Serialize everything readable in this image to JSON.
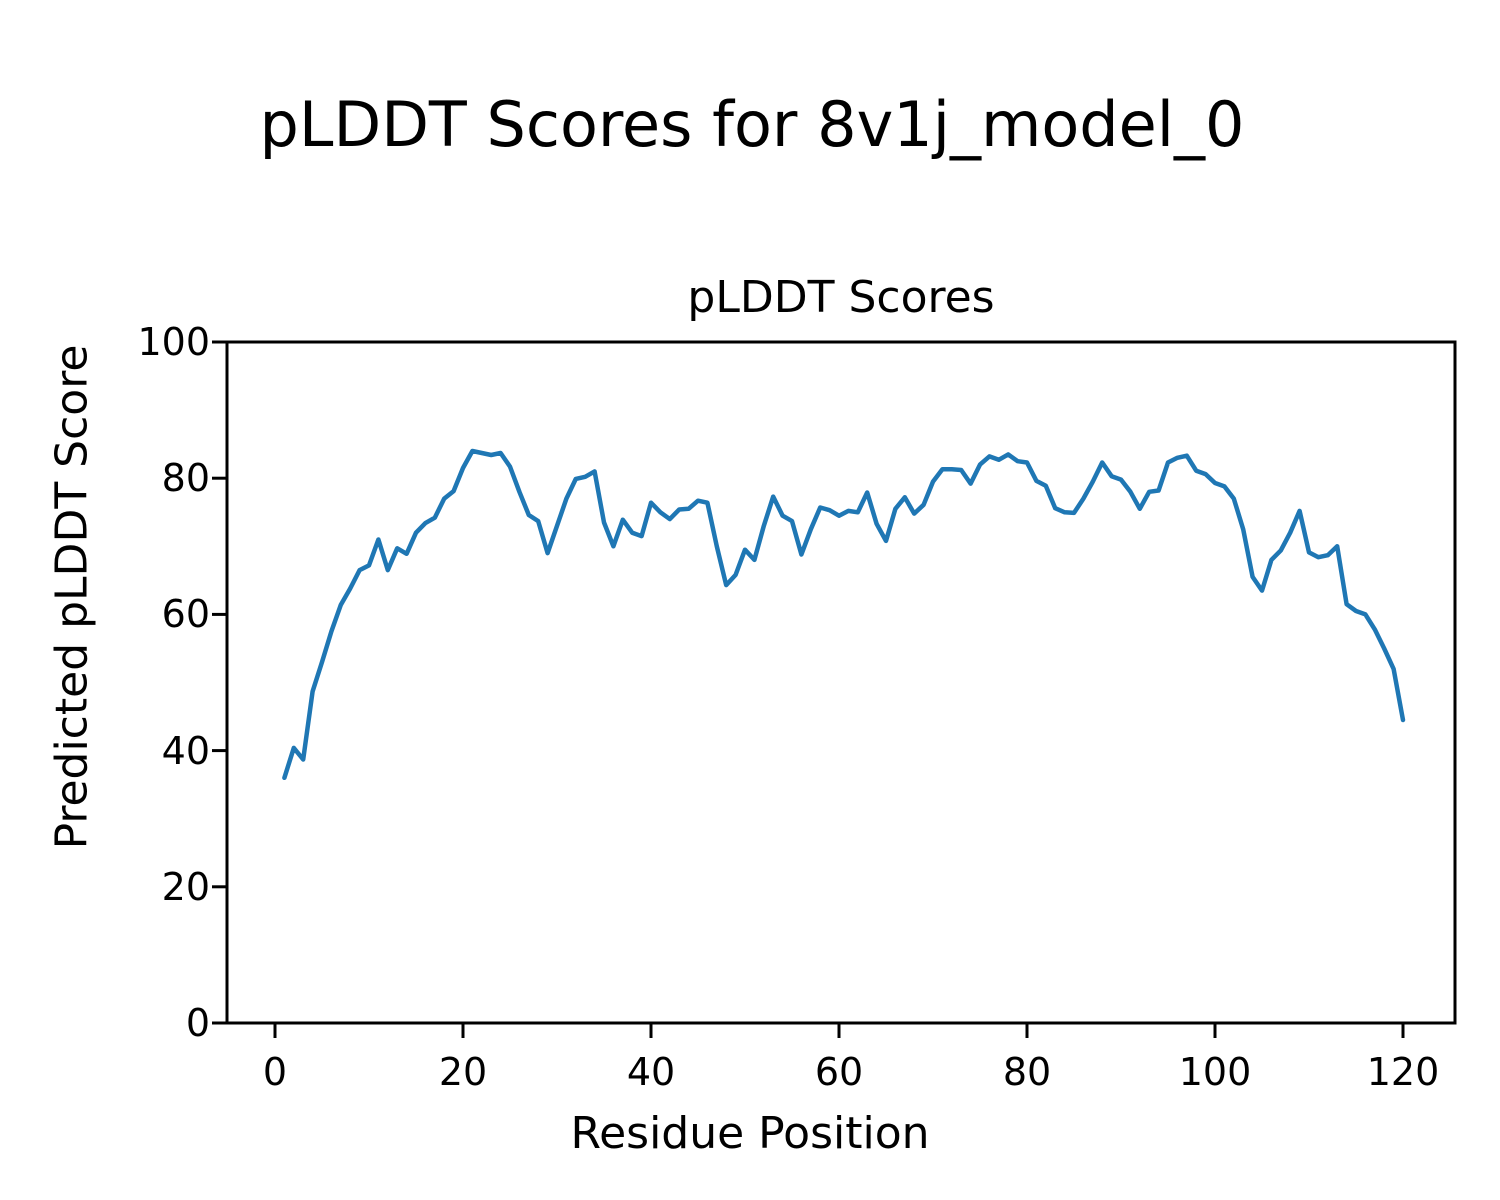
{
  "figure": {
    "suptitle": "pLDDT Scores for 8v1j_model_0",
    "background_color": "#ffffff",
    "text_color": "#000000"
  },
  "chart_data": {
    "type": "line",
    "title": "pLDDT Scores",
    "xlabel": "Residue Position",
    "ylabel": "Predicted pLDDT Score",
    "xlim": [
      -5,
      126
    ],
    "ylim": [
      0,
      100
    ],
    "xticks": [
      0,
      20,
      40,
      60,
      80,
      100,
      120
    ],
    "yticks": [
      0,
      20,
      40,
      60,
      80,
      100
    ],
    "grid": false,
    "legend": "none",
    "line_color": "#1f77b4",
    "axis_color": "#000000",
    "series": [
      {
        "name": "pLDDT",
        "x_start": 1,
        "x_end": 120,
        "y": [
          36.0,
          40.4,
          38.7,
          48.7,
          53.0,
          57.5,
          61.4,
          63.8,
          66.5,
          67.2,
          71.0,
          66.5,
          69.7,
          68.9,
          72.0,
          73.4,
          74.2,
          77.0,
          78.1,
          81.5,
          84.0,
          83.7,
          83.4,
          83.7,
          81.7,
          78.0,
          74.6,
          73.7,
          69.0,
          73.0,
          77.0,
          79.9,
          80.2,
          81.0,
          73.5,
          70.0,
          73.9,
          72.0,
          71.5,
          76.4,
          75.0,
          74.0,
          75.4,
          75.5,
          76.7,
          76.4,
          70.0,
          64.3,
          65.8,
          69.5,
          68.0,
          73.0,
          77.3,
          74.5,
          73.7,
          68.8,
          72.5,
          75.7,
          75.3,
          74.5,
          75.2,
          75.0,
          77.9,
          73.3,
          70.8,
          75.5,
          77.2,
          74.8,
          76.1,
          79.5,
          81.3,
          81.3,
          81.2,
          79.2,
          82.0,
          83.2,
          82.7,
          83.5,
          82.5,
          82.3,
          79.6,
          78.9,
          75.6,
          75.0,
          74.9,
          77.0,
          79.5,
          82.3,
          80.3,
          79.8,
          78.0,
          75.5,
          78.0,
          78.2,
          82.3,
          83.0,
          83.3,
          81.1,
          80.6,
          79.3,
          78.8,
          77.0,
          72.5,
          65.5,
          63.5,
          68.0,
          69.4,
          72.0,
          75.2,
          69.1,
          68.4,
          68.7,
          70.0,
          61.5,
          60.5,
          60.0,
          57.8,
          55.0,
          52.0,
          44.5
        ]
      }
    ]
  }
}
